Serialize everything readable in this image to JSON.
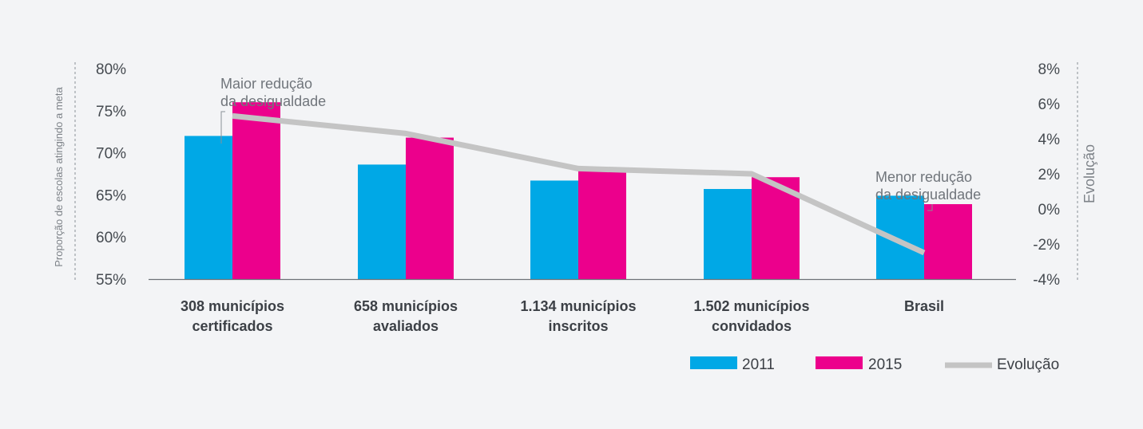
{
  "chart_data": {
    "type": "bar",
    "categories": [
      [
        "308 municípios",
        "certificados"
      ],
      [
        "658 municípios",
        "avaliados"
      ],
      [
        "1.134 municípios",
        "inscritos"
      ],
      [
        "1.502 municípios",
        "convidados"
      ],
      [
        "Brasil"
      ]
    ],
    "series": [
      {
        "name": "2011",
        "color": "#00a8e6",
        "values": [
          72.0,
          68.6,
          66.7,
          65.7,
          64.9
        ]
      },
      {
        "name": "2015",
        "color": "#ec008c",
        "values": [
          76.0,
          71.8,
          68.0,
          67.1,
          63.9
        ]
      }
    ],
    "line_series": {
      "name": "Evolução",
      "color": "#c4c4c4",
      "values": [
        5.3,
        4.3,
        2.3,
        2.0,
        -2.5
      ]
    },
    "ylabel": "Proporção de escolas atingindo a meta",
    "y2label": "Evolução",
    "ylim": [
      55,
      80
    ],
    "y2lim": [
      -4,
      8
    ],
    "yticks": [
      "80%",
      "75%",
      "70%",
      "65%",
      "60%",
      "55%"
    ],
    "y2ticks": [
      "8%",
      "6%",
      "4%",
      "2%",
      "0%",
      "-2%",
      "-4%"
    ],
    "annotations": [
      {
        "lines": [
          "Maior redução",
          "da desigualdade"
        ],
        "category_index": 0
      },
      {
        "lines": [
          "Menor redução",
          "da desigualdade"
        ],
        "category_index": 4
      }
    ],
    "legend": {
      "position": "bottom-right",
      "items": [
        {
          "label": "2011",
          "color": "#00a8e6",
          "kind": "bar"
        },
        {
          "label": "2015",
          "color": "#ec008c",
          "kind": "bar"
        },
        {
          "label": "Evolução",
          "color": "#c4c4c4",
          "kind": "line"
        }
      ]
    }
  }
}
